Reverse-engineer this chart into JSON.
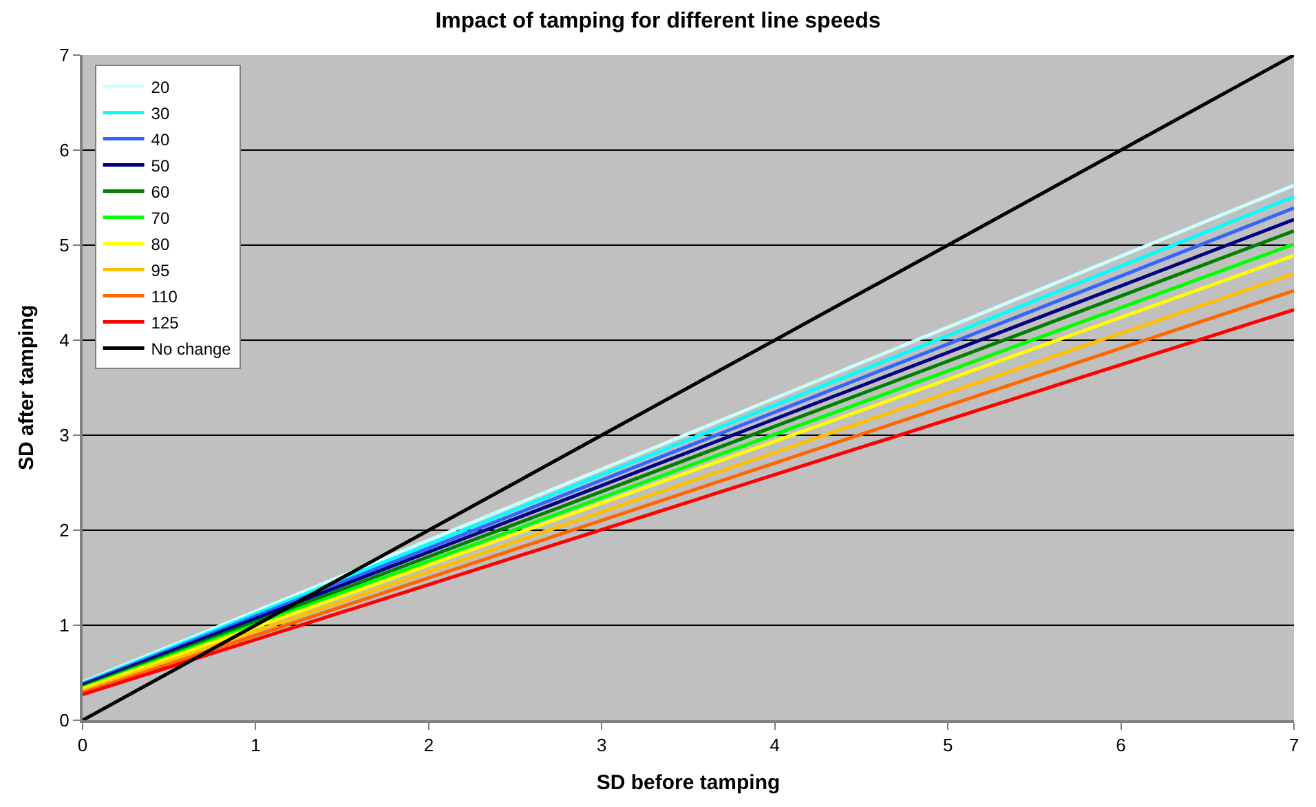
{
  "chart_data": {
    "type": "line",
    "title": "Impact of tamping for different line speeds",
    "xlabel": "SD before tamping",
    "ylabel": "SD after tamping",
    "x": [
      0,
      7
    ],
    "xlim": [
      0,
      7
    ],
    "ylim": [
      0,
      7
    ],
    "xticks": [
      0,
      1,
      2,
      3,
      4,
      5,
      6,
      7
    ],
    "yticks": [
      0,
      1,
      2,
      3,
      4,
      5,
      6,
      7
    ],
    "grid": "y",
    "legend": "top left",
    "marker": "none",
    "line_style": "solid",
    "series": [
      {
        "name": "20",
        "color": "#ccffff",
        "values": [
          0.4,
          5.63
        ]
      },
      {
        "name": "30",
        "color": "#00ffff",
        "values": [
          0.39,
          5.51
        ]
      },
      {
        "name": "40",
        "color": "#3366ff",
        "values": [
          0.38,
          5.39
        ]
      },
      {
        "name": "50",
        "color": "#000080",
        "values": [
          0.37,
          5.27
        ]
      },
      {
        "name": "60",
        "color": "#008000",
        "values": [
          0.35,
          5.15
        ]
      },
      {
        "name": "70",
        "color": "#00ff00",
        "values": [
          0.34,
          5.01
        ]
      },
      {
        "name": "80",
        "color": "#ffff00",
        "values": [
          0.33,
          4.89
        ]
      },
      {
        "name": "95",
        "color": "#ffc000",
        "values": [
          0.31,
          4.7
        ]
      },
      {
        "name": "110",
        "color": "#ff6600",
        "values": [
          0.29,
          4.52
        ]
      },
      {
        "name": "125",
        "color": "#ff0000",
        "values": [
          0.27,
          4.32
        ]
      },
      {
        "name": "No change",
        "color": "#000000",
        "values": [
          0,
          7
        ]
      }
    ]
  }
}
